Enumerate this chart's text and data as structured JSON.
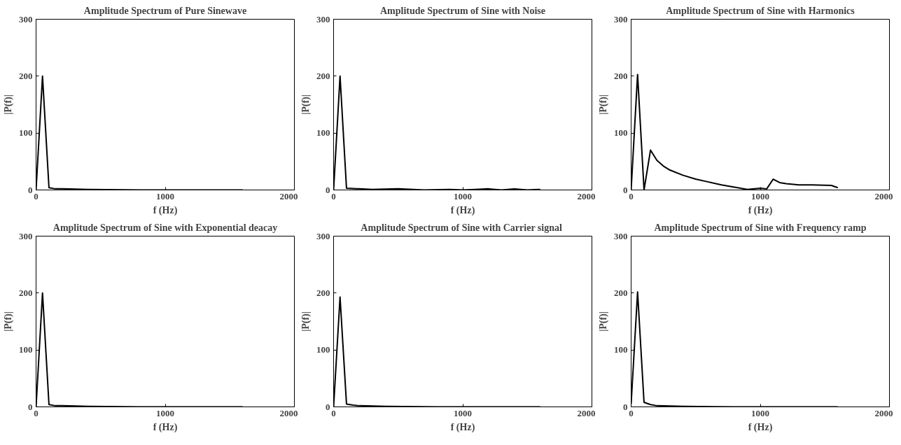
{
  "chart_data": [
    {
      "type": "line",
      "title": "Amplitude Spectrum of Pure Sinewave",
      "xlabel": "f (Hz)",
      "ylabel": "|P(f)|",
      "xlim": [
        0,
        2000
      ],
      "ylim": [
        0,
        300
      ],
      "xticks": [
        0,
        1000,
        2000
      ],
      "yticks": [
        0,
        100,
        200,
        300
      ],
      "grid": false,
      "series": [
        {
          "color": "#000000",
          "x": [
            0,
            50,
            100,
            150,
            200,
            400,
            800,
            1600
          ],
          "values": [
            0,
            200,
            4,
            2,
            2,
            1,
            0,
            0
          ]
        }
      ]
    },
    {
      "type": "line",
      "title": "Amplitude Spectrum of Sine with Noise",
      "xlabel": "f (Hz)",
      "ylabel": "|P(f)|",
      "xlim": [
        0,
        2000
      ],
      "ylim": [
        0,
        300
      ],
      "xticks": [
        0,
        1000,
        2000
      ],
      "yticks": [
        0,
        100,
        200,
        300
      ],
      "grid": false,
      "series": [
        {
          "color": "#000000",
          "x": [
            0,
            50,
            100,
            200,
            300,
            500,
            700,
            900,
            1000,
            1100,
            1200,
            1300,
            1400,
            1500,
            1600
          ],
          "values": [
            0,
            200,
            3,
            2,
            1,
            2,
            0,
            1,
            0,
            1,
            2,
            0,
            2,
            0,
            1
          ]
        }
      ]
    },
    {
      "type": "line",
      "title": "Amplitude Spectrum of Sine with Harmonics",
      "xlabel": "f (Hz)",
      "ylabel": "|P(f)|",
      "xlim": [
        0,
        2000
      ],
      "ylim": [
        0,
        300
      ],
      "xticks": [
        0,
        1000,
        2000
      ],
      "yticks": [
        0,
        100,
        200,
        300
      ],
      "grid": false,
      "series": [
        {
          "color": "#000000",
          "x": [
            0,
            50,
            100,
            150,
            200,
            250,
            300,
            400,
            500,
            600,
            700,
            800,
            900,
            1000,
            1050,
            1100,
            1150,
            1200,
            1300,
            1400,
            1550,
            1600
          ],
          "values": [
            0,
            203,
            0,
            70,
            52,
            42,
            35,
            26,
            19,
            14,
            9,
            5,
            1,
            3,
            2,
            19,
            13,
            11,
            9,
            9,
            8,
            4
          ]
        }
      ]
    },
    {
      "type": "line",
      "title": "Amplitude Spectrum of Sine with Exponential deacay",
      "xlabel": "f (Hz)",
      "ylabel": "|P(f)|",
      "xlim": [
        0,
        2000
      ],
      "ylim": [
        0,
        300
      ],
      "xticks": [
        0,
        1000,
        2000
      ],
      "yticks": [
        0,
        100,
        200,
        300
      ],
      "grid": false,
      "series": [
        {
          "color": "#000000",
          "x": [
            0,
            50,
            100,
            150,
            200,
            400,
            800,
            1600
          ],
          "values": [
            0,
            200,
            4,
            2,
            2,
            1,
            0,
            0
          ]
        }
      ]
    },
    {
      "type": "line",
      "title": "Amplitude Spectrum of  Sine with Carrier signal",
      "xlabel": "f (Hz)",
      "ylabel": "|P(f)|",
      "xlim": [
        0,
        2000
      ],
      "ylim": [
        0,
        300
      ],
      "xticks": [
        0,
        1000,
        2000
      ],
      "yticks": [
        0,
        100,
        200,
        300
      ],
      "grid": false,
      "series": [
        {
          "color": "#000000",
          "x": [
            0,
            50,
            100,
            150,
            200,
            400,
            800,
            1600
          ],
          "values": [
            0,
            193,
            5,
            3,
            2,
            1,
            0,
            0
          ]
        }
      ]
    },
    {
      "type": "line",
      "title": "Amplitude Spectrum of Sine with Frequency ramp",
      "xlabel": "f (Hz)",
      "ylabel": "|P(f)|",
      "xlim": [
        0,
        2000
      ],
      "ylim": [
        0,
        300
      ],
      "xticks": [
        0,
        1000,
        2000
      ],
      "yticks": [
        0,
        100,
        200,
        300
      ],
      "grid": false,
      "series": [
        {
          "color": "#000000",
          "x": [
            0,
            50,
            100,
            150,
            200,
            400,
            800,
            1600
          ],
          "values": [
            5,
            202,
            8,
            4,
            2,
            1,
            0,
            0
          ]
        }
      ]
    }
  ]
}
